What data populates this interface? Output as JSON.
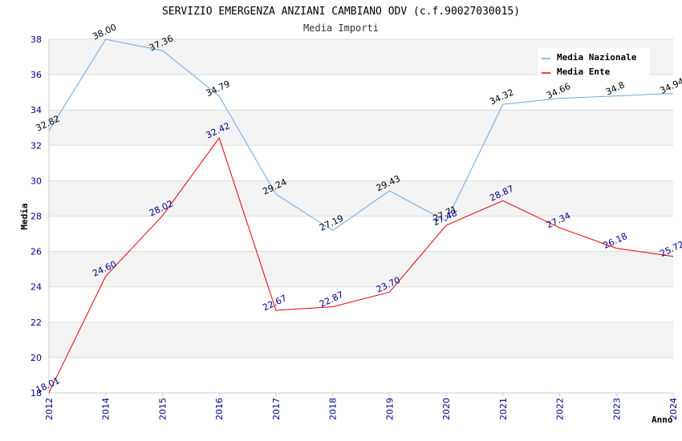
{
  "chart_data": {
    "type": "line",
    "title": "SERVIZIO EMERGENZA ANZIANI CAMBIANO ODV (c.f.90027030015)",
    "subtitle": "Media Importi",
    "xlabel": "Anno",
    "ylabel": "Media",
    "ylim": [
      18,
      38
    ],
    "ytick_step": 2,
    "categories": [
      "2012",
      "2014",
      "2015",
      "2016",
      "2017",
      "2018",
      "2019",
      "2020",
      "2021",
      "2022",
      "2023",
      "2024"
    ],
    "legend_position": "top-right",
    "grid": true,
    "series": [
      {
        "name": "Media Nazionale",
        "color": "#6aa8e6",
        "values": [
          32.82,
          38.0,
          37.36,
          34.79,
          29.24,
          27.19,
          29.43,
          27.71,
          34.32,
          34.66,
          34.8,
          34.94
        ],
        "labels": [
          "32.82",
          "38.00",
          "37.36",
          "34.79",
          "29.24",
          "27.19",
          "29.43",
          "27.71",
          "34.32",
          "34.66",
          "34.8",
          "34.94"
        ]
      },
      {
        "name": "Media Ente",
        "color": "#e60000",
        "values": [
          18.01,
          24.6,
          28.02,
          32.42,
          22.67,
          22.87,
          23.7,
          27.48,
          28.87,
          27.34,
          26.18,
          25.72
        ],
        "labels": [
          "18.01",
          "24.60",
          "28.02",
          "32.42",
          "22.67",
          "22.87",
          "23.70",
          "27.48",
          "28.87",
          "27.34",
          "26.18",
          "25.72"
        ]
      }
    ]
  }
}
